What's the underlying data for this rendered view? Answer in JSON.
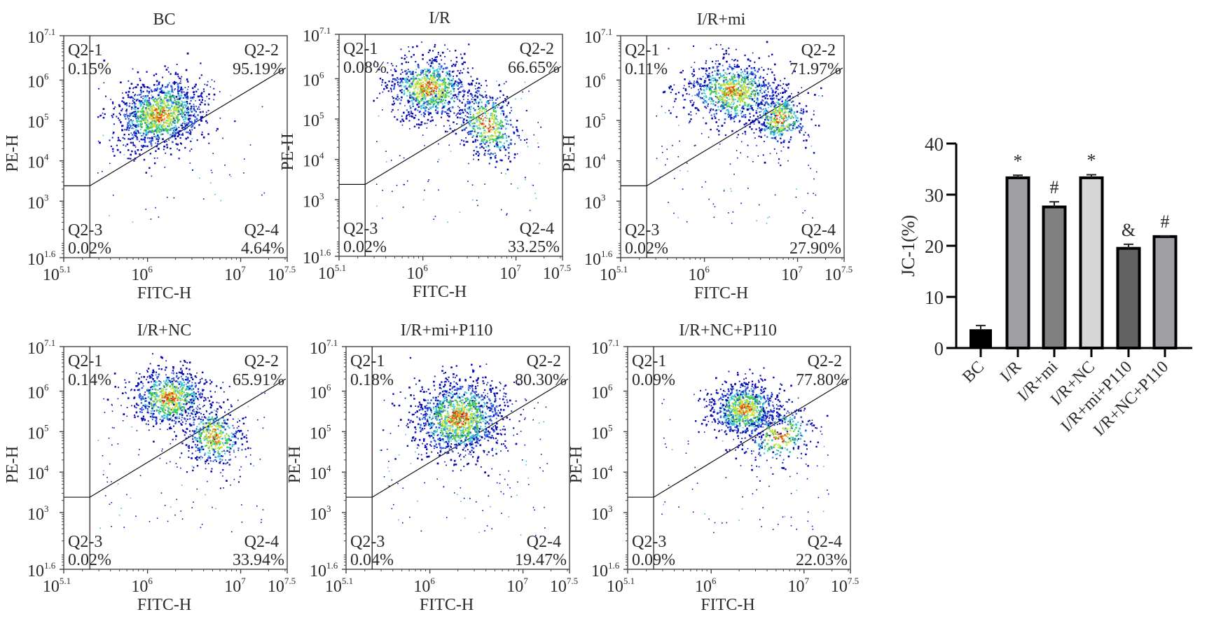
{
  "chart_data": [
    {
      "type": "scatter",
      "subtype": "flow-cytometry-density",
      "title": "BC",
      "xlabel": "FITC-H",
      "ylabel": "PE-H",
      "x_scale": "log",
      "y_scale": "log",
      "xlim_exp": [
        5.1,
        7.5
      ],
      "ylim_exp": [
        1.6,
        7.1
      ],
      "x_tick_labels": [
        {
          "base": "10",
          "exp": "5.1"
        },
        {
          "base": "10",
          "exp": "6"
        },
        {
          "base": "10",
          "exp": "7"
        },
        {
          "base": "10",
          "exp": "7.5"
        }
      ],
      "y_tick_labels": [
        {
          "base": "10",
          "exp": "7.1"
        },
        {
          "base": "10",
          "exp": "6"
        },
        {
          "base": "10",
          "exp": "5"
        },
        {
          "base": "10",
          "exp": "4"
        },
        {
          "base": "10",
          "exp": "3"
        },
        {
          "base": "10",
          "exp": "1.6"
        }
      ],
      "quadrants": [
        {
          "name": "Q2-1",
          "value": "0.15%"
        },
        {
          "name": "Q2-2",
          "value": "95.19%"
        },
        {
          "name": "Q2-3",
          "value": "0.02%"
        },
        {
          "name": "Q2-4",
          "value": "4.64%"
        }
      ]
    },
    {
      "type": "scatter",
      "subtype": "flow-cytometry-density",
      "title": "I/R",
      "xlabel": "FITC-H",
      "ylabel": "PE-H",
      "x_scale": "log",
      "y_scale": "log",
      "xlim_exp": [
        5.1,
        7.5
      ],
      "ylim_exp": [
        1.6,
        7.1
      ],
      "x_tick_labels": [
        {
          "base": "10",
          "exp": "5.1"
        },
        {
          "base": "10",
          "exp": "6"
        },
        {
          "base": "10",
          "exp": "7"
        },
        {
          "base": "10",
          "exp": "7.5"
        }
      ],
      "y_tick_labels": [
        {
          "base": "10",
          "exp": "7.1"
        },
        {
          "base": "10",
          "exp": "6"
        },
        {
          "base": "10",
          "exp": "5"
        },
        {
          "base": "10",
          "exp": "4"
        },
        {
          "base": "10",
          "exp": "3"
        },
        {
          "base": "10",
          "exp": "1.6"
        }
      ],
      "quadrants": [
        {
          "name": "Q2-1",
          "value": "0.08%"
        },
        {
          "name": "Q2-2",
          "value": "66.65%"
        },
        {
          "name": "Q2-3",
          "value": "0.02%"
        },
        {
          "name": "Q2-4",
          "value": "33.25%"
        }
      ]
    },
    {
      "type": "scatter",
      "subtype": "flow-cytometry-density",
      "title": "I/R+mi",
      "xlabel": "FITC-H",
      "ylabel": "PE-H",
      "x_scale": "log",
      "y_scale": "log",
      "xlim_exp": [
        5.1,
        7.5
      ],
      "ylim_exp": [
        1.6,
        7.1
      ],
      "x_tick_labels": [
        {
          "base": "10",
          "exp": "5.1"
        },
        {
          "base": "10",
          "exp": "6"
        },
        {
          "base": "10",
          "exp": "7"
        },
        {
          "base": "10",
          "exp": "7.5"
        }
      ],
      "y_tick_labels": [
        {
          "base": "10",
          "exp": "7.1"
        },
        {
          "base": "10",
          "exp": "6"
        },
        {
          "base": "10",
          "exp": "5"
        },
        {
          "base": "10",
          "exp": "4"
        },
        {
          "base": "10",
          "exp": "3"
        },
        {
          "base": "10",
          "exp": "1.6"
        }
      ],
      "quadrants": [
        {
          "name": "Q2-1",
          "value": "0.11%"
        },
        {
          "name": "Q2-2",
          "value": "71.97%"
        },
        {
          "name": "Q2-3",
          "value": "0.02%"
        },
        {
          "name": "Q2-4",
          "value": "27.90%"
        }
      ]
    },
    {
      "type": "scatter",
      "subtype": "flow-cytometry-density",
      "title": "I/R+NC",
      "xlabel": "FITC-H",
      "ylabel": "PE-H",
      "x_scale": "log",
      "y_scale": "log",
      "xlim_exp": [
        5.1,
        7.5
      ],
      "ylim_exp": [
        1.6,
        7.1
      ],
      "x_tick_labels": [
        {
          "base": "10",
          "exp": "5.1"
        },
        {
          "base": "10",
          "exp": "6"
        },
        {
          "base": "10",
          "exp": "7"
        },
        {
          "base": "10",
          "exp": "7.5"
        }
      ],
      "y_tick_labels": [
        {
          "base": "10",
          "exp": "7.1"
        },
        {
          "base": "10",
          "exp": "6"
        },
        {
          "base": "10",
          "exp": "5"
        },
        {
          "base": "10",
          "exp": "4"
        },
        {
          "base": "10",
          "exp": "3"
        },
        {
          "base": "10",
          "exp": "1.6"
        }
      ],
      "quadrants": [
        {
          "name": "Q2-1",
          "value": "0.14%"
        },
        {
          "name": "Q2-2",
          "value": "65.91%"
        },
        {
          "name": "Q2-3",
          "value": "0.02%"
        },
        {
          "name": "Q2-4",
          "value": "33.94%"
        }
      ]
    },
    {
      "type": "scatter",
      "subtype": "flow-cytometry-density",
      "title": "I/R+mi+P110",
      "xlabel": "FITC-H",
      "ylabel": "PE-H",
      "x_scale": "log",
      "y_scale": "log",
      "xlim_exp": [
        5.1,
        7.5
      ],
      "ylim_exp": [
        1.6,
        7.1
      ],
      "x_tick_labels": [
        {
          "base": "10",
          "exp": "5.1"
        },
        {
          "base": "10",
          "exp": "6"
        },
        {
          "base": "10",
          "exp": "7"
        },
        {
          "base": "10",
          "exp": "7.5"
        }
      ],
      "y_tick_labels": [
        {
          "base": "10",
          "exp": "7.1"
        },
        {
          "base": "10",
          "exp": "6"
        },
        {
          "base": "10",
          "exp": "5"
        },
        {
          "base": "10",
          "exp": "4"
        },
        {
          "base": "10",
          "exp": "3"
        },
        {
          "base": "10",
          "exp": "1.6"
        }
      ],
      "quadrants": [
        {
          "name": "Q2-1",
          "value": "0.18%"
        },
        {
          "name": "Q2-2",
          "value": "80.30%"
        },
        {
          "name": "Q2-3",
          "value": "0.04%"
        },
        {
          "name": "Q2-4",
          "value": "19.47%"
        }
      ]
    },
    {
      "type": "scatter",
      "subtype": "flow-cytometry-density",
      "title": "I/R+NC+P110",
      "xlabel": "FITC-H",
      "ylabel": "PE-H",
      "x_scale": "log",
      "y_scale": "log",
      "xlim_exp": [
        5.1,
        7.5
      ],
      "ylim_exp": [
        1.6,
        7.1
      ],
      "x_tick_labels": [
        {
          "base": "10",
          "exp": "5.1"
        },
        {
          "base": "10",
          "exp": "6"
        },
        {
          "base": "10",
          "exp": "7"
        },
        {
          "base": "10",
          "exp": "7.5"
        }
      ],
      "y_tick_labels": [
        {
          "base": "10",
          "exp": "7.1"
        },
        {
          "base": "10",
          "exp": "6"
        },
        {
          "base": "10",
          "exp": "5"
        },
        {
          "base": "10",
          "exp": "4"
        },
        {
          "base": "10",
          "exp": "3"
        },
        {
          "base": "10",
          "exp": "1.6"
        }
      ],
      "quadrants": [
        {
          "name": "Q2-1",
          "value": "0.09%"
        },
        {
          "name": "Q2-2",
          "value": "77.80%"
        },
        {
          "name": "Q2-3",
          "value": "0.09%"
        },
        {
          "name": "Q2-4",
          "value": "22.03%"
        }
      ]
    },
    {
      "type": "bar",
      "title": "",
      "xlabel": "",
      "ylabel": "JC-1(%)",
      "ylim": [
        0,
        40
      ],
      "yticks": [
        "0",
        "10",
        "20",
        "30",
        "40"
      ],
      "categories": [
        "BC",
        "I/R",
        "I/R+mi",
        "I/R+NC",
        "I/R+mi+P110",
        "I/R+NC+P110"
      ],
      "values": [
        3.6,
        33.3,
        27.6,
        33.3,
        19.5,
        21.8
      ],
      "error": [
        0.8,
        0.5,
        1.0,
        0.6,
        0.8,
        0.1
      ],
      "annotations": [
        "",
        "*",
        "#",
        "*",
        "&",
        "#"
      ],
      "colors": [
        "#000000",
        "#a0a0a4",
        "#808080",
        "#d6d6d6",
        "#636363",
        "#a0a0a4"
      ]
    }
  ],
  "colors": {
    "axis": "#333333",
    "gate_line": "#111111",
    "density": [
      "#0a0ab4",
      "#2f5fe0",
      "#38c6d8",
      "#3fd04a",
      "#c8e23a",
      "#f0a020",
      "#e03a1a"
    ]
  }
}
